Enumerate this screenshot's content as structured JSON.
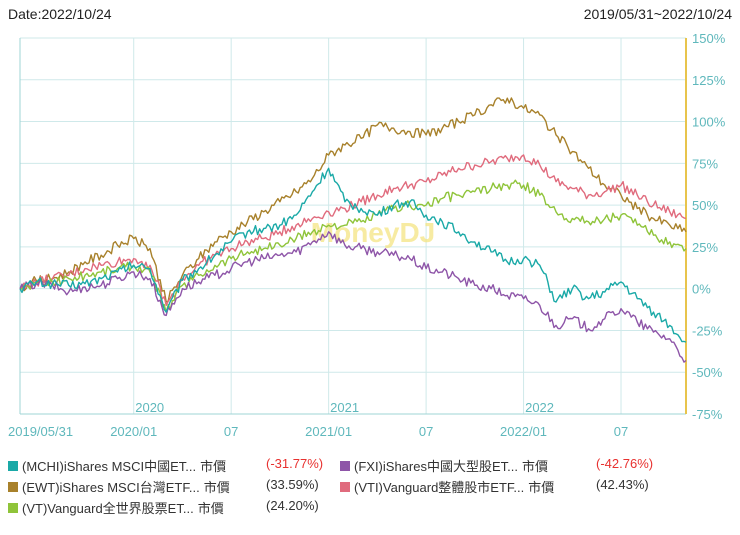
{
  "header": {
    "date_label": "Date:2022/10/24",
    "range_label": "2019/05/31~2022/10/24"
  },
  "watermark": "MoneyDJ",
  "colors": {
    "grid": "#cfe9ea",
    "axis": "#9fd4d6",
    "right_axis": "#e8c44c",
    "tick_text": "#5fb8bc",
    "watermark": "#f3e27a"
  },
  "chart_data": {
    "type": "line",
    "title": "",
    "xlabel": "",
    "ylabel": "",
    "ylim": [
      -75,
      150
    ],
    "yticks": [
      150,
      125,
      100,
      75,
      50,
      25,
      0,
      -25,
      -50,
      -75
    ],
    "ytick_labels": [
      "150%",
      "125%",
      "100%",
      "75%",
      "50%",
      "25%",
      "0%",
      "-25%",
      "-50%",
      "-75%"
    ],
    "xlim": [
      0,
      41
    ],
    "xticks": [
      {
        "x": 0,
        "label": "2019/05/31"
      },
      {
        "x": 7,
        "label": "2020/01"
      },
      {
        "x": 13,
        "label": "07"
      },
      {
        "x": 19,
        "label": "2021/01"
      },
      {
        "x": 25,
        "label": "07"
      },
      {
        "x": 31,
        "label": "2022/01"
      },
      {
        "x": 37,
        "label": "07"
      }
    ],
    "year_labels": [
      {
        "x": 7,
        "label": "2020"
      },
      {
        "x": 19,
        "label": "2021"
      },
      {
        "x": 31,
        "label": "2022"
      }
    ],
    "x": [
      0,
      1,
      2,
      3,
      4,
      5,
      6,
      7,
      8,
      9,
      10,
      11,
      12,
      13,
      14,
      15,
      16,
      17,
      18,
      19,
      20,
      21,
      22,
      23,
      24,
      25,
      26,
      27,
      28,
      29,
      30,
      31,
      32,
      33,
      34,
      35,
      36,
      37,
      38,
      39,
      40,
      41
    ],
    "series": [
      {
        "name": "(MCHI)iShares MSCI中國ET...",
        "color": "#1aa9a7",
        "pct_label": "(-31.77%)",
        "pct_color": "#e8312f",
        "values": [
          0,
          4,
          3,
          2,
          3,
          6,
          10,
          14,
          12,
          -14,
          5,
          12,
          20,
          28,
          34,
          36,
          38,
          44,
          58,
          72,
          52,
          48,
          44,
          50,
          52,
          44,
          40,
          34,
          28,
          22,
          16,
          18,
          14,
          -8,
          0,
          -6,
          -2,
          4,
          -6,
          -14,
          -22,
          -32
        ]
      },
      {
        "name": "(FXI)iShares中國大型股ET...",
        "color": "#8e55a8",
        "pct_label": "(-42.76%)",
        "pct_color": "#e8312f",
        "values": [
          0,
          3,
          2,
          -2,
          1,
          2,
          6,
          10,
          6,
          -16,
          0,
          4,
          8,
          12,
          16,
          18,
          20,
          22,
          28,
          34,
          26,
          24,
          22,
          20,
          18,
          12,
          10,
          6,
          2,
          0,
          -4,
          -6,
          -10,
          -22,
          -18,
          -24,
          -18,
          -12,
          -20,
          -26,
          -30,
          -43
        ]
      },
      {
        "name": "(EWT)iShares MSCI台灣ETF...",
        "color": "#a8812b",
        "pct_label": "(33.59%)",
        "pct_color": "#333333",
        "values": [
          0,
          5,
          6,
          10,
          16,
          20,
          26,
          30,
          24,
          -8,
          8,
          18,
          28,
          34,
          40,
          46,
          52,
          58,
          66,
          80,
          86,
          90,
          98,
          96,
          94,
          92,
          96,
          100,
          104,
          110,
          114,
          108,
          104,
          92,
          82,
          72,
          62,
          56,
          48,
          42,
          38,
          34
        ]
      },
      {
        "name": "(VTI)Vanguard整體股市ETF...",
        "color": "#e06b7d",
        "pct_label": "(42.43%)",
        "pct_color": "#333333",
        "values": [
          0,
          4,
          6,
          8,
          12,
          14,
          16,
          18,
          14,
          -10,
          6,
          14,
          20,
          24,
          28,
          30,
          34,
          38,
          42,
          46,
          48,
          52,
          56,
          60,
          62,
          64,
          68,
          72,
          74,
          76,
          78,
          80,
          74,
          64,
          60,
          56,
          58,
          62,
          56,
          50,
          46,
          42
        ]
      },
      {
        "name": "(VT)Vanguard全世界股票ET...",
        "color": "#8fc43a",
        "pct_label": "(24.20%)",
        "pct_color": "#333333",
        "values": [
          0,
          3,
          4,
          6,
          8,
          10,
          12,
          14,
          10,
          -14,
          2,
          8,
          14,
          18,
          22,
          24,
          26,
          30,
          34,
          38,
          38,
          40,
          44,
          48,
          50,
          50,
          54,
          56,
          58,
          60,
          62,
          62,
          56,
          46,
          42,
          40,
          42,
          44,
          38,
          32,
          28,
          24
        ]
      }
    ]
  },
  "legend": {
    "price_label": "市價"
  }
}
